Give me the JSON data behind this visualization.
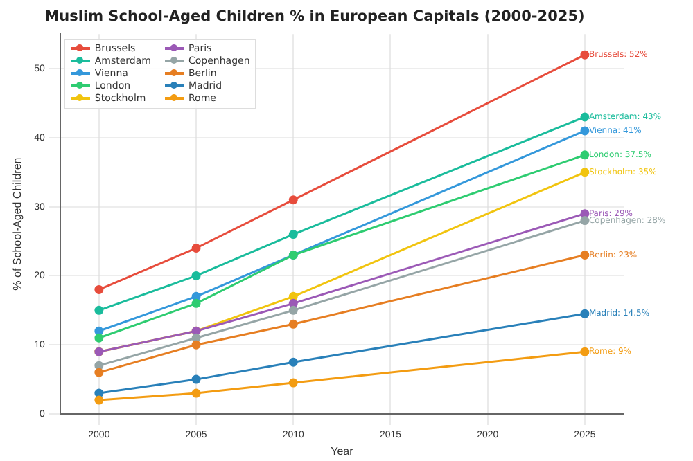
{
  "chart_data": {
    "type": "line",
    "title": "Muslim School-Aged Children % in European Capitals (2000-2025)",
    "xlabel": "Year",
    "ylabel": "% of School-Aged Children",
    "x": [
      2000,
      2005,
      2010,
      2025
    ],
    "xlim": [
      1998,
      2027
    ],
    "xticks": [
      2000,
      2005,
      2010,
      2015,
      2020,
      2025
    ],
    "ylim": [
      0,
      55
    ],
    "yticks": [
      0,
      10,
      20,
      30,
      40,
      50
    ],
    "grid": true,
    "legend": "top left",
    "marker": "circle",
    "line_style": "solid",
    "series": [
      {
        "name": "Brussels",
        "color": "#e74c3c",
        "values": [
          18,
          24,
          31,
          52
        ],
        "value_labels": [
          null,
          null,
          null,
          "Brussels: 52%"
        ]
      },
      {
        "name": "Amsterdam",
        "color": "#1abc9c",
        "values": [
          15,
          20,
          26,
          43
        ],
        "value_labels": [
          null,
          null,
          null,
          "Amsterdam: 43%"
        ]
      },
      {
        "name": "Vienna",
        "color": "#3498db",
        "values": [
          12,
          17,
          23,
          41
        ],
        "value_labels": [
          null,
          null,
          null,
          "Vienna: 41%"
        ]
      },
      {
        "name": "London",
        "color": "#2ecc71",
        "values": [
          11,
          16,
          23,
          37.5
        ],
        "value_labels": [
          null,
          null,
          null,
          "London: 37.5%"
        ]
      },
      {
        "name": "Stockholm",
        "color": "#f1c40f",
        "values": [
          9,
          12,
          17,
          35
        ],
        "value_labels": [
          null,
          null,
          null,
          "Stockholm: 35%"
        ]
      },
      {
        "name": "Paris",
        "color": "#9b59b6",
        "values": [
          9,
          12,
          16,
          29
        ],
        "value_labels": [
          null,
          null,
          null,
          "Paris: 29%"
        ]
      },
      {
        "name": "Copenhagen",
        "color": "#95a5a6",
        "values": [
          7,
          11,
          15,
          28
        ],
        "value_labels": [
          null,
          null,
          null,
          "Copenhagen: 28%"
        ]
      },
      {
        "name": "Berlin",
        "color": "#e67e22",
        "values": [
          6,
          10,
          13,
          23
        ],
        "value_labels": [
          null,
          null,
          null,
          "Berlin: 23%"
        ]
      },
      {
        "name": "Madrid",
        "color": "#2980b9",
        "values": [
          3,
          5,
          7.5,
          14.5
        ],
        "value_labels": [
          null,
          null,
          null,
          "Madrid: 14.5%"
        ]
      },
      {
        "name": "Rome",
        "color": "#f39c12",
        "values": [
          2,
          3,
          4.5,
          9
        ],
        "value_labels": [
          null,
          null,
          null,
          "Rome: 9%"
        ]
      }
    ]
  }
}
